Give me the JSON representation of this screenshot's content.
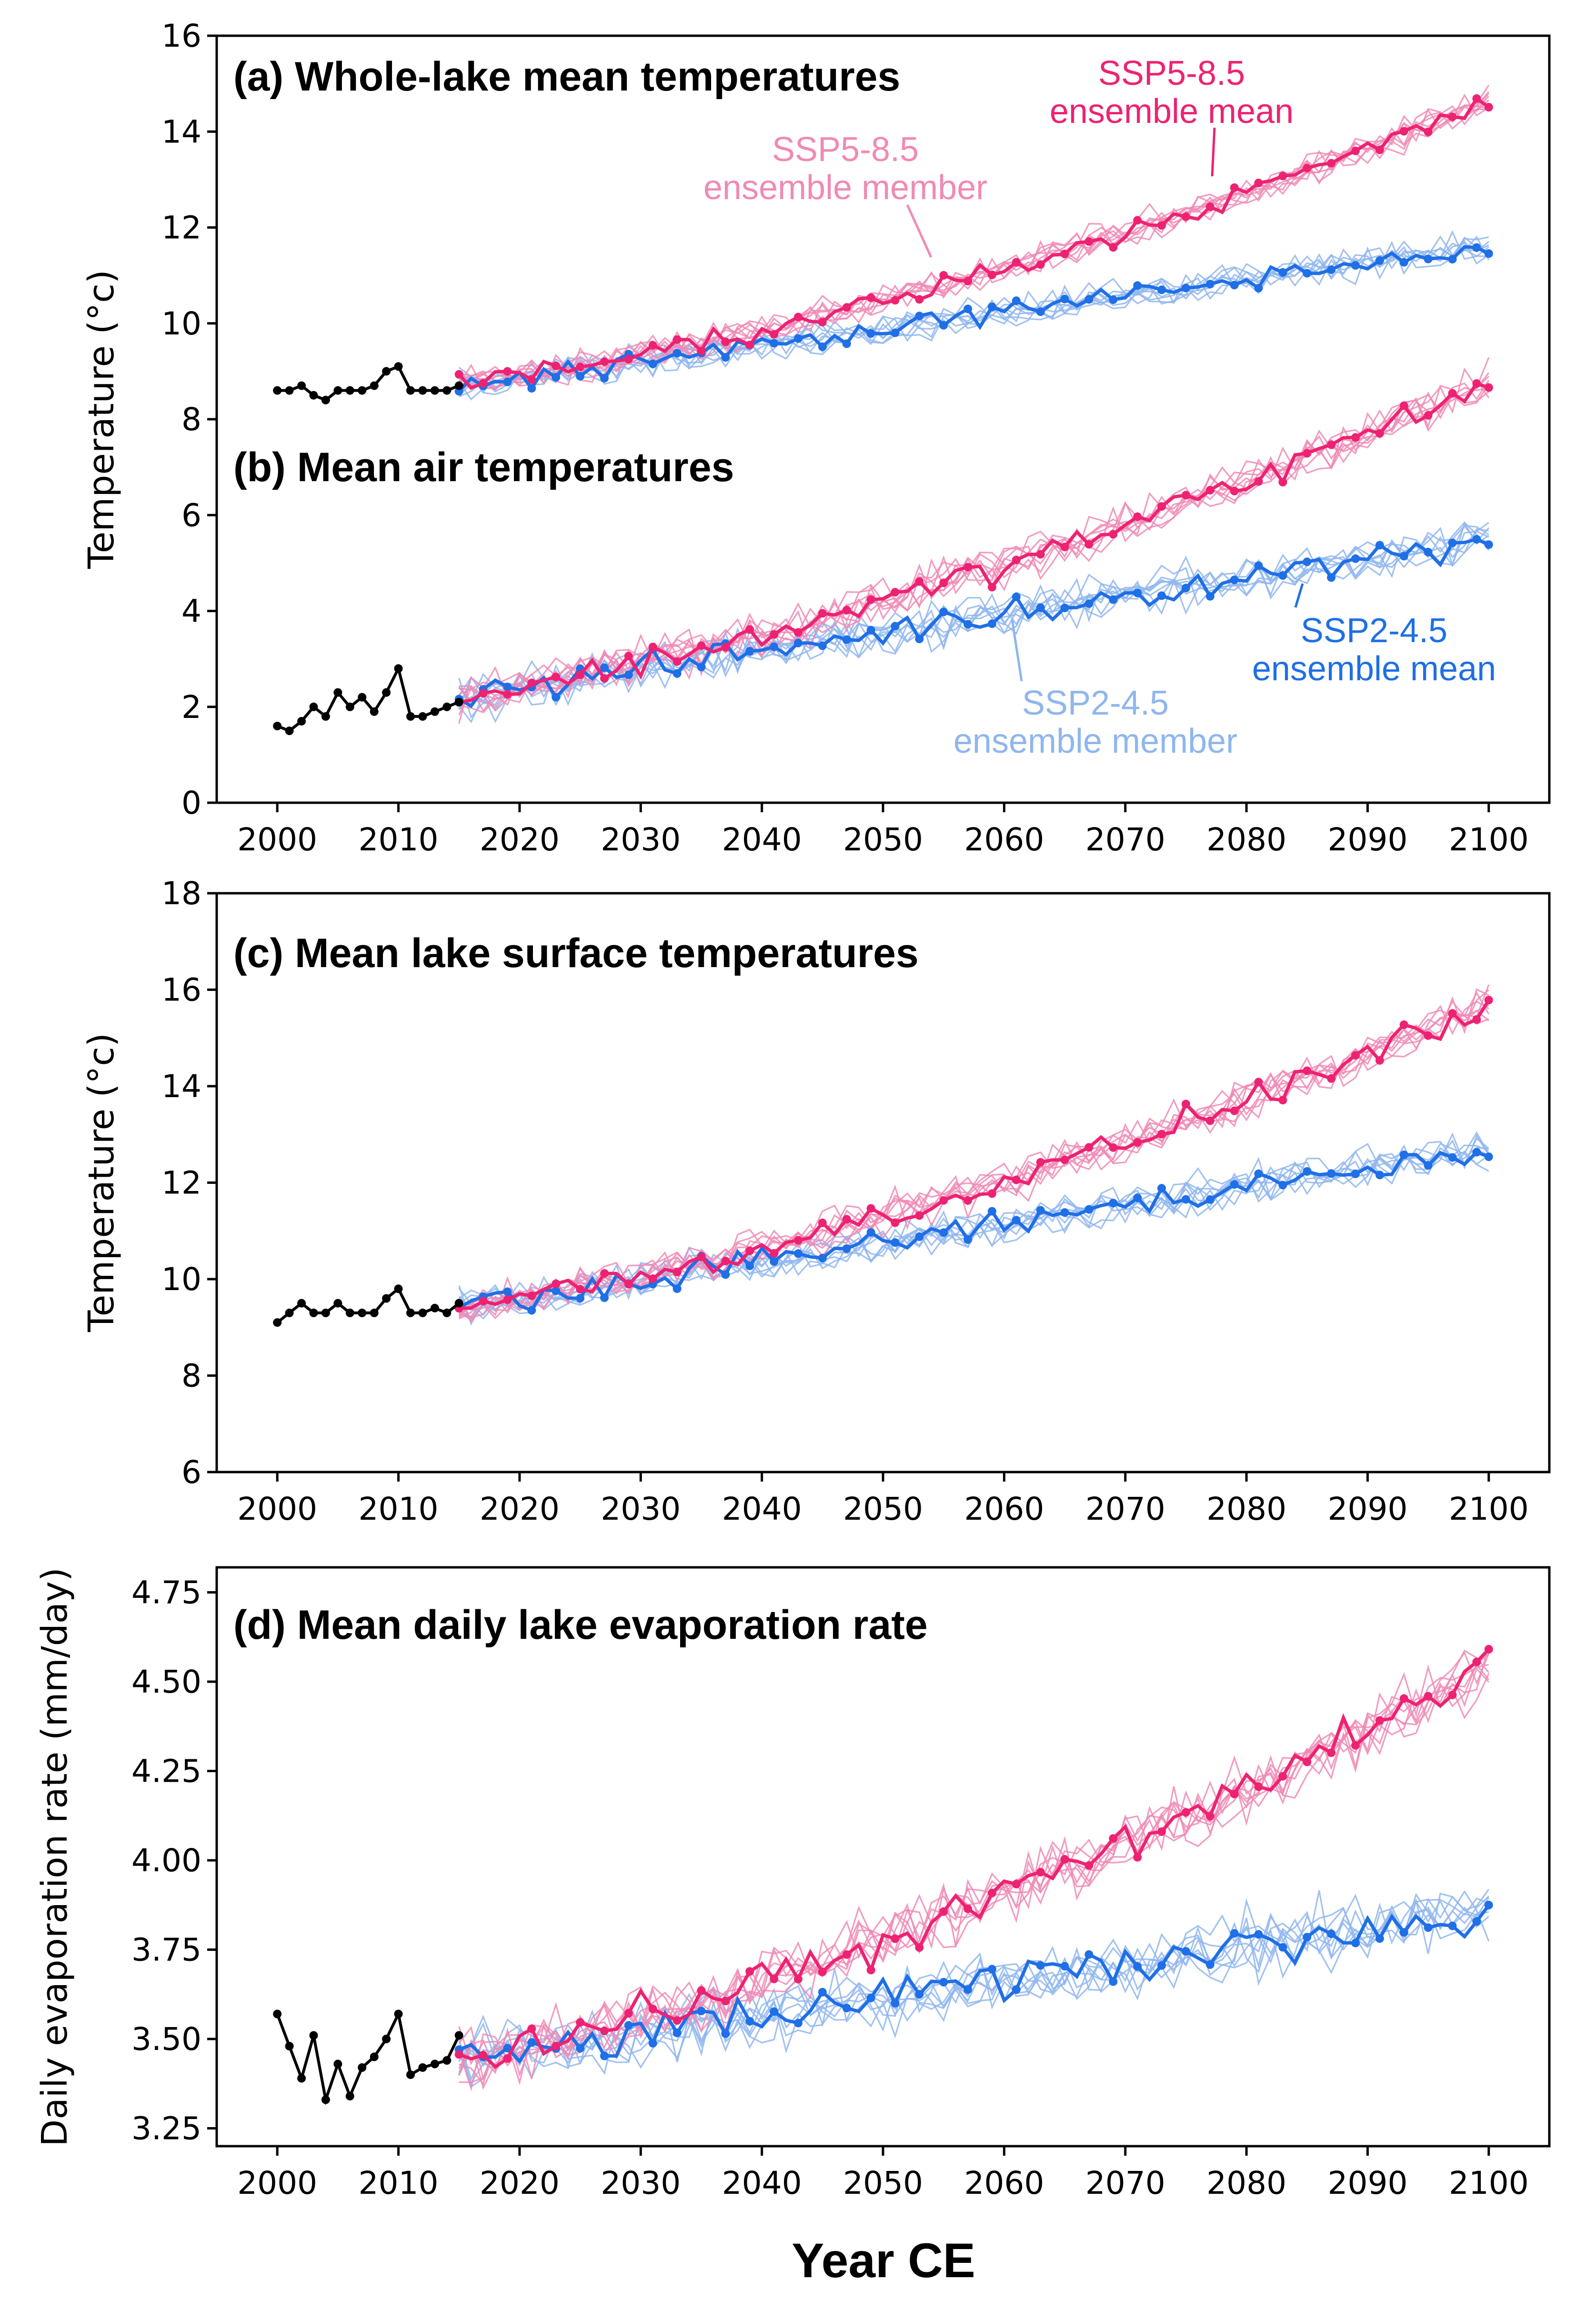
{
  "figure": {
    "xlabel": "Year CE"
  },
  "colors": {
    "ssp585": "#ee2272",
    "ssp585_member": "#f08ab5",
    "ssp245": "#1f6fe6",
    "ssp245_member": "#8fb6ee",
    "historical": "#000000"
  },
  "annotations": {
    "ssp585_mean": [
      "SSP5-8.5",
      "ensemble mean"
    ],
    "ssp585_member": [
      "SSP5-8.5",
      "ensemble member"
    ],
    "ssp245_mean": [
      "SSP2-4.5",
      "ensemble mean"
    ],
    "ssp245_member": [
      "SSP2-4.5",
      "ensemble member"
    ]
  },
  "chart_data": [
    {
      "id": "a",
      "type": "line",
      "title": "(a) Whole-lake mean temperatures",
      "ylabel": "Temperature (°c)",
      "ylim": [
        0,
        16
      ],
      "yticks": [
        0,
        2,
        4,
        6,
        8,
        10,
        12,
        14,
        16
      ],
      "ytick_labels": [
        "0",
        "2",
        "4",
        "6",
        "8",
        "10",
        "12",
        "14",
        "16"
      ],
      "xlim": [
        1995,
        2105
      ],
      "xticks": [
        2000,
        2010,
        2020,
        2030,
        2040,
        2050,
        2060,
        2070,
        2080,
        2090,
        2100
      ],
      "xtick_labels": [
        "2000",
        "2010",
        "2020",
        "2030",
        "2040",
        "2050",
        "2060",
        "2070",
        "2080",
        "2090",
        "2100"
      ],
      "show_xticks": false,
      "historical": {
        "x_start": 2000,
        "values": [
          8.6,
          8.6,
          8.7,
          8.5,
          8.4,
          8.6,
          8.6,
          8.6,
          8.7,
          9.0,
          9.1,
          8.6,
          8.6,
          8.6,
          8.6,
          8.7
        ]
      },
      "series": [
        {
          "name": "SSP5-8.5",
          "x_start": 2015,
          "start": 8.7,
          "end": 14.6,
          "ylo_clip": 8.4
        },
        {
          "name": "SSP2-4.5",
          "x_start": 2015,
          "start": 8.7,
          "end": 11.6
        }
      ]
    },
    {
      "id": "b",
      "type": "line",
      "title": "(b) Mean air temperatures",
      "ylabel": "",
      "ylim": [
        0,
        16
      ],
      "show_xticks": true,
      "historical": {
        "x_start": 2000,
        "values": [
          1.6,
          1.5,
          1.7,
          2.0,
          1.8,
          2.3,
          2.0,
          2.2,
          1.9,
          2.3,
          2.8,
          1.8,
          1.8,
          1.9,
          2.0,
          2.1
        ]
      },
      "series": [
        {
          "name": "SSP5-8.5",
          "x_start": 2015,
          "start": 2.2,
          "end": 8.8
        },
        {
          "name": "SSP2-4.5",
          "x_start": 2015,
          "start": 2.2,
          "end": 5.5
        }
      ]
    },
    {
      "id": "c",
      "type": "line",
      "title": "(c) Mean lake surface temperatures",
      "ylabel": "Temperature (°c)",
      "ylim": [
        6,
        18
      ],
      "yticks": [
        6,
        8,
        10,
        12,
        14,
        16,
        18
      ],
      "ytick_labels": [
        "6",
        "8",
        "10",
        "12",
        "14",
        "16",
        "18"
      ],
      "xlim": [
        1995,
        2105
      ],
      "xticks": [
        2000,
        2010,
        2020,
        2030,
        2040,
        2050,
        2060,
        2070,
        2080,
        2090,
        2100
      ],
      "xtick_labels": [
        "2000",
        "2010",
        "2020",
        "2030",
        "2040",
        "2050",
        "2060",
        "2070",
        "2080",
        "2090",
        "2100"
      ],
      "show_xticks": true,
      "historical": {
        "x_start": 2000,
        "values": [
          9.1,
          9.3,
          9.5,
          9.3,
          9.3,
          9.5,
          9.3,
          9.3,
          9.3,
          9.6,
          9.8,
          9.3,
          9.3,
          9.4,
          9.3,
          9.5
        ]
      },
      "series": [
        {
          "name": "SSP5-8.5",
          "x_start": 2015,
          "start": 9.4,
          "end": 15.7
        },
        {
          "name": "SSP2-4.5",
          "x_start": 2015,
          "start": 9.4,
          "end": 12.7
        }
      ]
    },
    {
      "id": "d",
      "type": "line",
      "title": "(d) Mean daily lake evaporation rate",
      "ylabel": "Daily evaporation rate (mm/day)",
      "ylim": [
        3.2,
        4.82
      ],
      "yticks": [
        3.25,
        3.5,
        3.75,
        4.0,
        4.25,
        4.5,
        4.75
      ],
      "ytick_labels": [
        "3.25",
        "3.50",
        "3.75",
        "4.00",
        "4.25",
        "4.50",
        "4.75"
      ],
      "xlim": [
        1995,
        2105
      ],
      "xticks": [
        2000,
        2010,
        2020,
        2030,
        2040,
        2050,
        2060,
        2070,
        2080,
        2090,
        2100
      ],
      "xtick_labels": [
        "2000",
        "2010",
        "2020",
        "2030",
        "2040",
        "2050",
        "2060",
        "2070",
        "2080",
        "2090",
        "2100"
      ],
      "show_xticks": true,
      "historical": {
        "x_start": 2000,
        "values": [
          3.57,
          3.48,
          3.39,
          3.51,
          3.33,
          3.43,
          3.34,
          3.42,
          3.45,
          3.5,
          3.57,
          3.4,
          3.42,
          3.43,
          3.44,
          3.51
        ]
      },
      "series": [
        {
          "name": "SSP5-8.5",
          "x_start": 2015,
          "start": 3.44,
          "end": 4.55
        },
        {
          "name": "SSP2-4.5",
          "x_start": 2015,
          "start": 3.44,
          "end": 3.86
        }
      ]
    }
  ]
}
